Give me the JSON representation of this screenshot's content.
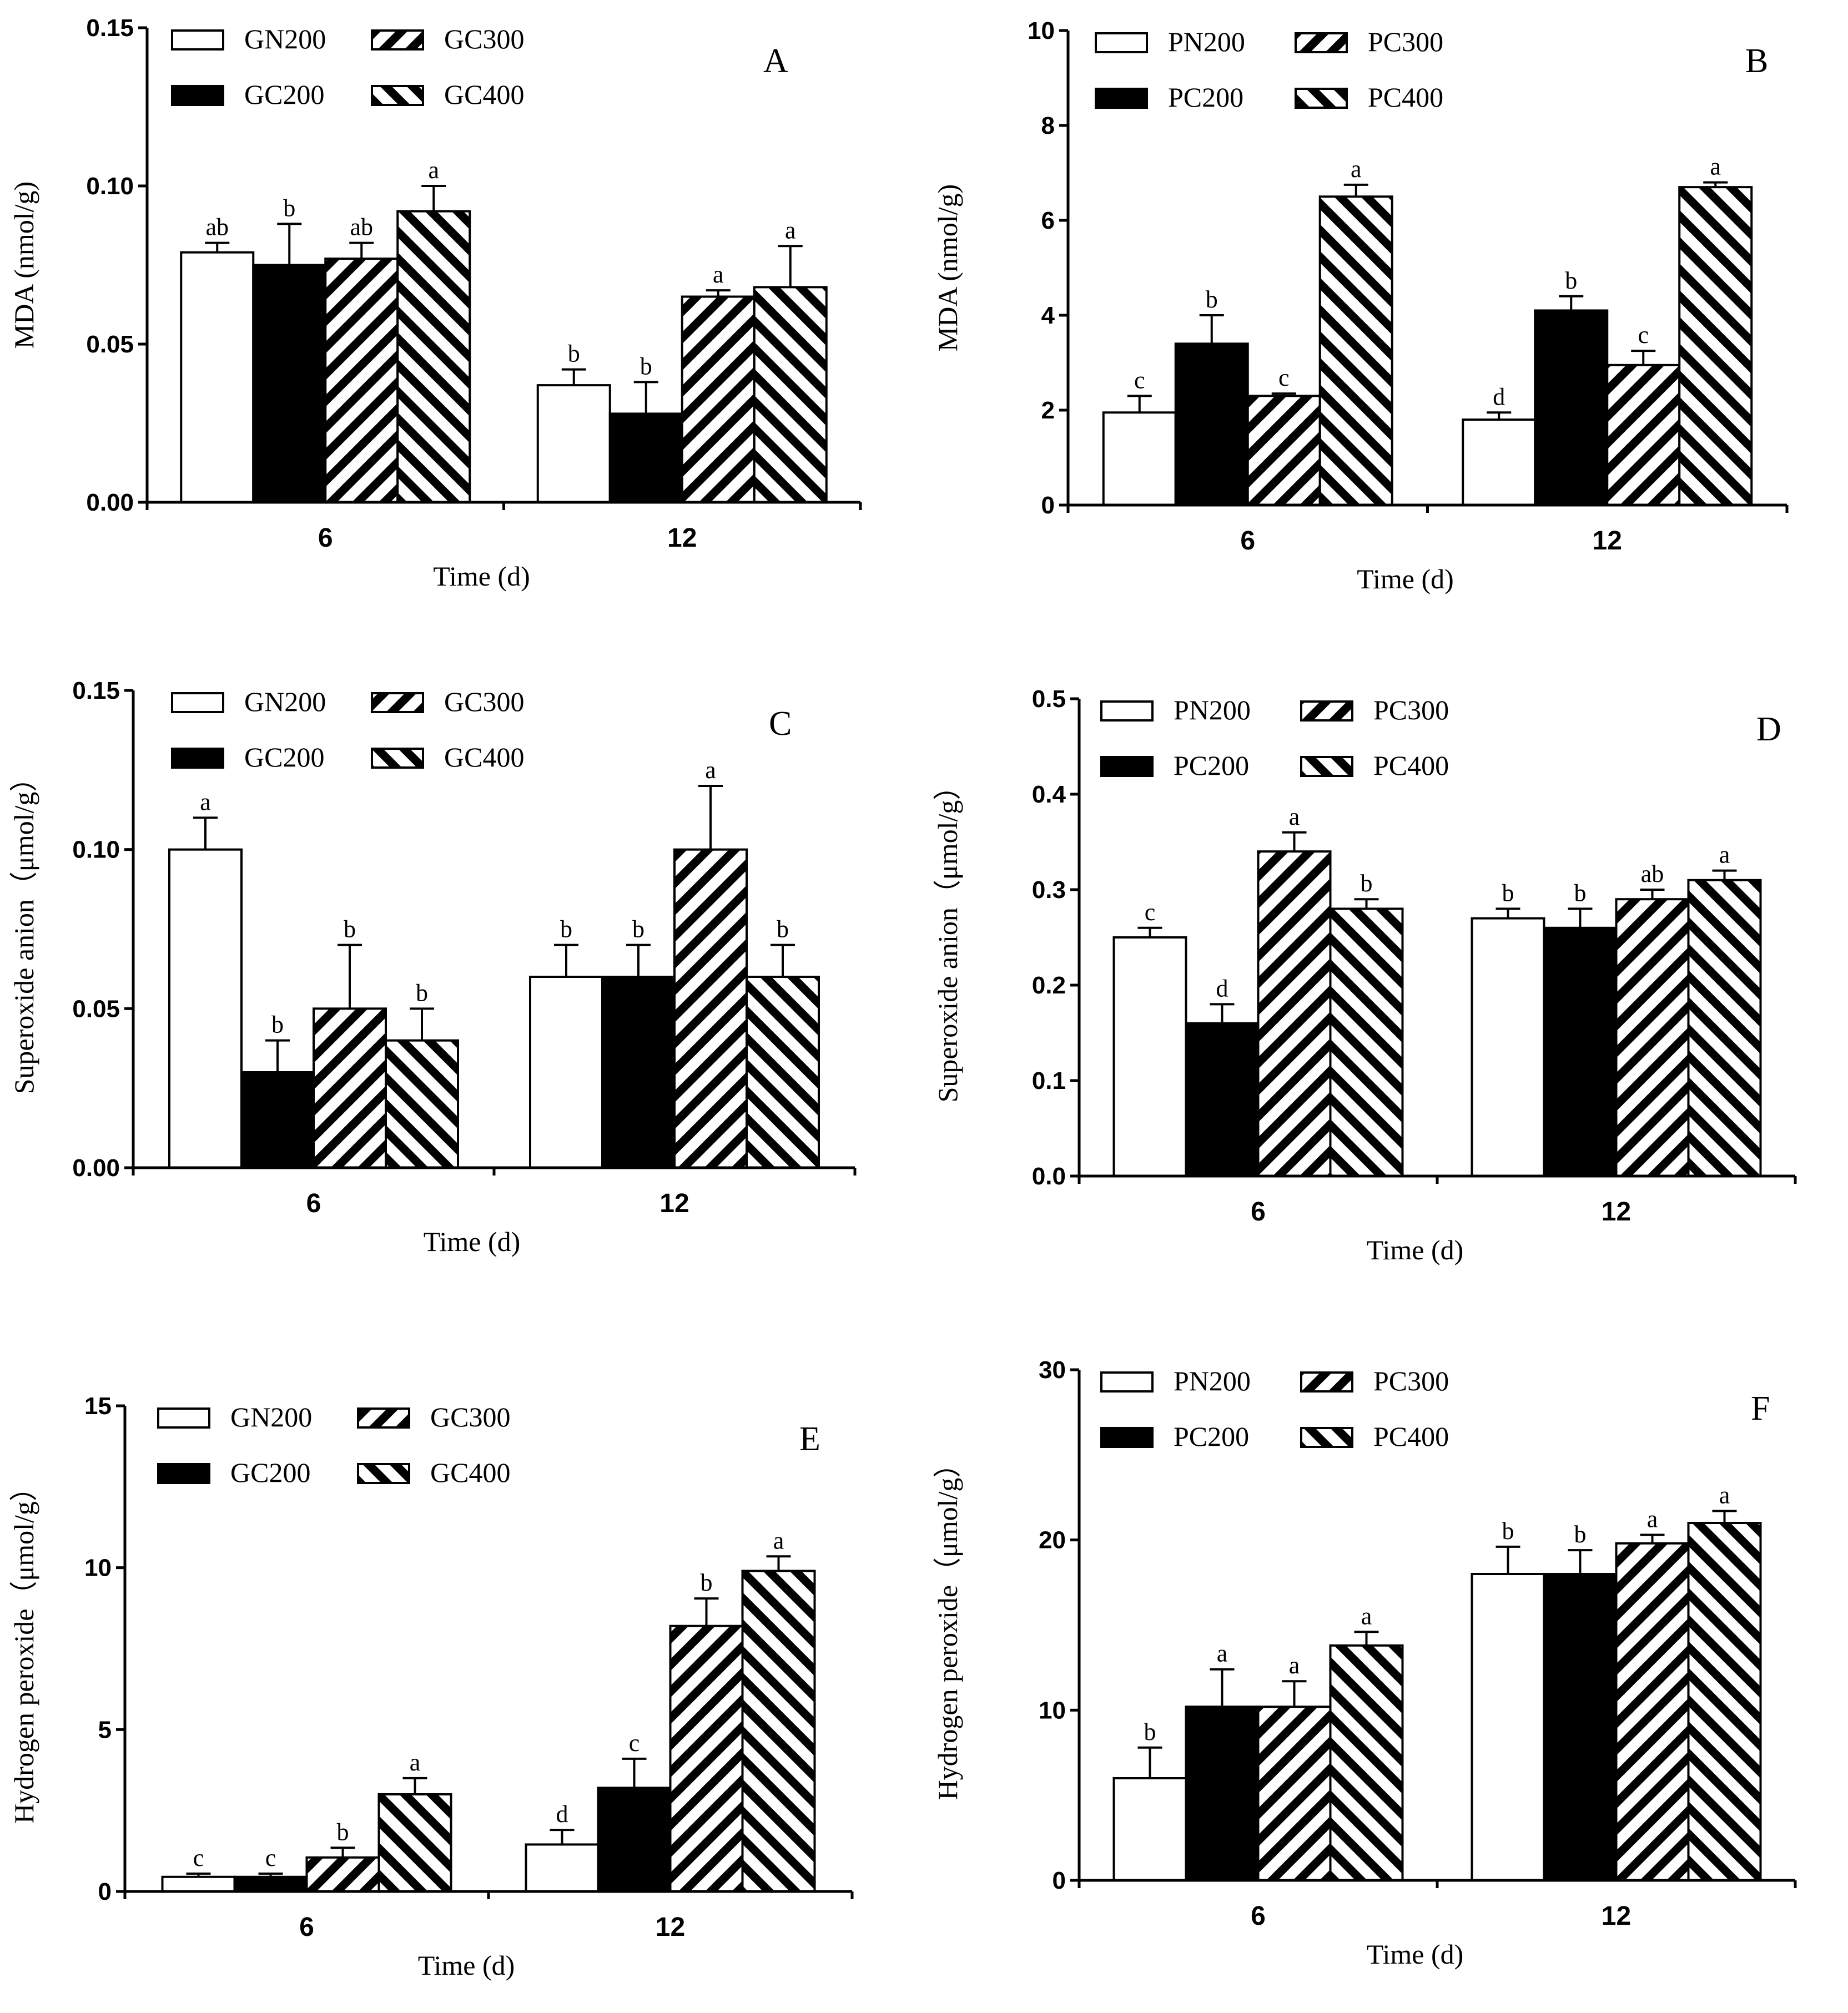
{
  "colors": {
    "ink": "#000000",
    "paper": "#ffffff"
  },
  "panels": [
    {
      "id": "A",
      "letter": "A",
      "ylabel": "MDA (nmol/g)",
      "xlabel": "Time (d)",
      "chart_ref": 0,
      "legend": [
        {
          "name": "GN200",
          "pattern": "open"
        },
        {
          "name": "GC300",
          "pattern": "hatch-right"
        },
        {
          "name": "GC200",
          "pattern": "solid"
        },
        {
          "name": "GC400",
          "pattern": "hatch-left"
        }
      ]
    },
    {
      "id": "B",
      "letter": "B",
      "ylabel": "MDA (nmol/g)",
      "xlabel": "Time (d)",
      "chart_ref": 1,
      "legend": [
        {
          "name": "PN200",
          "pattern": "open"
        },
        {
          "name": "PC300",
          "pattern": "hatch-right"
        },
        {
          "name": "PC200",
          "pattern": "solid"
        },
        {
          "name": "PC400",
          "pattern": "hatch-left"
        }
      ]
    },
    {
      "id": "C",
      "letter": "C",
      "ylabel": "Superoxide anion（μmol/g）",
      "xlabel": "Time (d)",
      "chart_ref": 2,
      "legend": [
        {
          "name": "GN200",
          "pattern": "open"
        },
        {
          "name": "GC300",
          "pattern": "hatch-right"
        },
        {
          "name": "GC200",
          "pattern": "solid"
        },
        {
          "name": "GC400",
          "pattern": "hatch-left"
        }
      ]
    },
    {
      "id": "D",
      "letter": "D",
      "ylabel": "Superoxide anion（μmol/g）",
      "xlabel": "Time (d)",
      "chart_ref": 3,
      "legend": [
        {
          "name": "PN200",
          "pattern": "open"
        },
        {
          "name": "PC300",
          "pattern": "hatch-right"
        },
        {
          "name": "PC200",
          "pattern": "solid"
        },
        {
          "name": "PC400",
          "pattern": "hatch-left"
        }
      ]
    },
    {
      "id": "E",
      "letter": "E",
      "ylabel": "Hydrogen peroxide（μmol/g）",
      "xlabel": "Time (d)",
      "chart_ref": 4,
      "legend": [
        {
          "name": "GN200",
          "pattern": "open"
        },
        {
          "name": "GC300",
          "pattern": "hatch-right"
        },
        {
          "name": "GC200",
          "pattern": "solid"
        },
        {
          "name": "GC400",
          "pattern": "hatch-left"
        }
      ]
    },
    {
      "id": "F",
      "letter": "F",
      "ylabel": "Hydrogen peroxide（μmol/g）",
      "xlabel": "Time (d)",
      "chart_ref": 5,
      "legend": [
        {
          "name": "PN200",
          "pattern": "open"
        },
        {
          "name": "PC300",
          "pattern": "hatch-right"
        },
        {
          "name": "PC200",
          "pattern": "solid"
        },
        {
          "name": "PC400",
          "pattern": "hatch-left"
        }
      ]
    }
  ],
  "chart_data": [
    {
      "type": "bar",
      "title": "A",
      "xlabel": "Time (d)",
      "ylabel": "MDA (nmol/g)",
      "categories": [
        "6",
        "12"
      ],
      "ylim": [
        0,
        0.15
      ],
      "yticks": [
        "0.00",
        "0.05",
        "0.10",
        "0.15"
      ],
      "series": [
        {
          "name": "GN200",
          "values": [
            0.079,
            0.037
          ],
          "errors": [
            0.003,
            0.005
          ],
          "letters": [
            "ab",
            "b"
          ]
        },
        {
          "name": "GC200",
          "values": [
            0.075,
            0.028
          ],
          "errors": [
            0.013,
            0.01
          ],
          "letters": [
            "b",
            "b"
          ]
        },
        {
          "name": "GC300",
          "values": [
            0.077,
            0.065
          ],
          "errors": [
            0.005,
            0.002
          ],
          "letters": [
            "ab",
            "a"
          ]
        },
        {
          "name": "GC400",
          "values": [
            0.092,
            0.068
          ],
          "errors": [
            0.008,
            0.013
          ],
          "letters": [
            "a",
            "a"
          ]
        }
      ]
    },
    {
      "type": "bar",
      "title": "B",
      "xlabel": "Time (d)",
      "ylabel": "MDA (nmol/g)",
      "categories": [
        "6",
        "12"
      ],
      "ylim": [
        0,
        10
      ],
      "yticks": [
        "0",
        "2",
        "4",
        "6",
        "8",
        "10"
      ],
      "series": [
        {
          "name": "PN200",
          "values": [
            1.95,
            1.8
          ],
          "errors": [
            0.35,
            0.15
          ],
          "letters": [
            "c",
            "d"
          ]
        },
        {
          "name": "PC200",
          "values": [
            3.4,
            4.1
          ],
          "errors": [
            0.6,
            0.3
          ],
          "letters": [
            "b",
            "b"
          ]
        },
        {
          "name": "PC300",
          "values": [
            2.3,
            2.95
          ],
          "errors": [
            0.05,
            0.3
          ],
          "letters": [
            "c",
            "c"
          ]
        },
        {
          "name": "PC400",
          "values": [
            6.5,
            6.7
          ],
          "errors": [
            0.25,
            0.1
          ],
          "letters": [
            "a",
            "a"
          ]
        }
      ]
    },
    {
      "type": "bar",
      "title": "C",
      "xlabel": "Time (d)",
      "ylabel": "Superoxide anion（μmol/g）",
      "categories": [
        "6",
        "12"
      ],
      "ylim": [
        0,
        0.15
      ],
      "yticks": [
        "0.00",
        "0.05",
        "0.10",
        "0.15"
      ],
      "series": [
        {
          "name": "GN200",
          "values": [
            0.1,
            0.06
          ],
          "errors": [
            0.01,
            0.01
          ],
          "letters": [
            "a",
            "b"
          ]
        },
        {
          "name": "GC200",
          "values": [
            0.03,
            0.06
          ],
          "errors": [
            0.01,
            0.01
          ],
          "letters": [
            "b",
            "b"
          ]
        },
        {
          "name": "GC300",
          "values": [
            0.05,
            0.1
          ],
          "errors": [
            0.02,
            0.02
          ],
          "letters": [
            "b",
            "a"
          ]
        },
        {
          "name": "GC400",
          "values": [
            0.04,
            0.06
          ],
          "errors": [
            0.01,
            0.01
          ],
          "letters": [
            "b",
            "b"
          ]
        }
      ]
    },
    {
      "type": "bar",
      "title": "D",
      "xlabel": "Time (d)",
      "ylabel": "Superoxide anion（μmol/g）",
      "categories": [
        "6",
        "12"
      ],
      "ylim": [
        0,
        0.5
      ],
      "yticks": [
        "0.0",
        "0.1",
        "0.2",
        "0.3",
        "0.4",
        "0.5"
      ],
      "series": [
        {
          "name": "PN200",
          "values": [
            0.25,
            0.27
          ],
          "errors": [
            0.01,
            0.01
          ],
          "letters": [
            "c",
            "b"
          ]
        },
        {
          "name": "PC200",
          "values": [
            0.16,
            0.26
          ],
          "errors": [
            0.02,
            0.02
          ],
          "letters": [
            "d",
            "b"
          ]
        },
        {
          "name": "PC300",
          "values": [
            0.34,
            0.29
          ],
          "errors": [
            0.02,
            0.01
          ],
          "letters": [
            "a",
            "ab"
          ]
        },
        {
          "name": "PC400",
          "values": [
            0.28,
            0.31
          ],
          "errors": [
            0.01,
            0.01
          ],
          "letters": [
            "b",
            "a"
          ]
        }
      ]
    },
    {
      "type": "bar",
      "title": "E",
      "xlabel": "Time (d)",
      "ylabel": "Hydrogen peroxide（μmol/g）",
      "categories": [
        "6",
        "12"
      ],
      "ylim": [
        0,
        15
      ],
      "yticks": [
        "0",
        "5",
        "10",
        "15"
      ],
      "series": [
        {
          "name": "GN200",
          "values": [
            0.45,
            1.45
          ],
          "errors": [
            0.1,
            0.45
          ],
          "letters": [
            "c",
            "d"
          ]
        },
        {
          "name": "GC200",
          "values": [
            0.45,
            3.2
          ],
          "errors": [
            0.1,
            0.9
          ],
          "letters": [
            "c",
            "c"
          ]
        },
        {
          "name": "GC300",
          "values": [
            1.05,
            8.2
          ],
          "errors": [
            0.3,
            0.85
          ],
          "letters": [
            "b",
            "b"
          ]
        },
        {
          "name": "GC400",
          "values": [
            3.0,
            9.9
          ],
          "errors": [
            0.5,
            0.45
          ],
          "letters": [
            "a",
            "a"
          ]
        }
      ]
    },
    {
      "type": "bar",
      "title": "F",
      "xlabel": "Time (d)",
      "ylabel": "Hydrogen peroxide（μmol/g）",
      "categories": [
        "6",
        "12"
      ],
      "ylim": [
        0,
        30
      ],
      "yticks": [
        "0",
        "10",
        "20",
        "30"
      ],
      "series": [
        {
          "name": "PN200",
          "values": [
            6.0,
            18.0
          ],
          "errors": [
            1.8,
            1.6
          ],
          "letters": [
            "b",
            "b"
          ]
        },
        {
          "name": "PC200",
          "values": [
            10.2,
            18.0
          ],
          "errors": [
            2.2,
            1.4
          ],
          "letters": [
            "a",
            "b"
          ]
        },
        {
          "name": "PC300",
          "values": [
            10.2,
            19.8
          ],
          "errors": [
            1.5,
            0.5
          ],
          "letters": [
            "a",
            "a"
          ]
        },
        {
          "name": "PC400",
          "values": [
            13.8,
            21.0
          ],
          "errors": [
            0.8,
            0.7
          ],
          "letters": [
            "a",
            "a"
          ]
        }
      ]
    }
  ]
}
